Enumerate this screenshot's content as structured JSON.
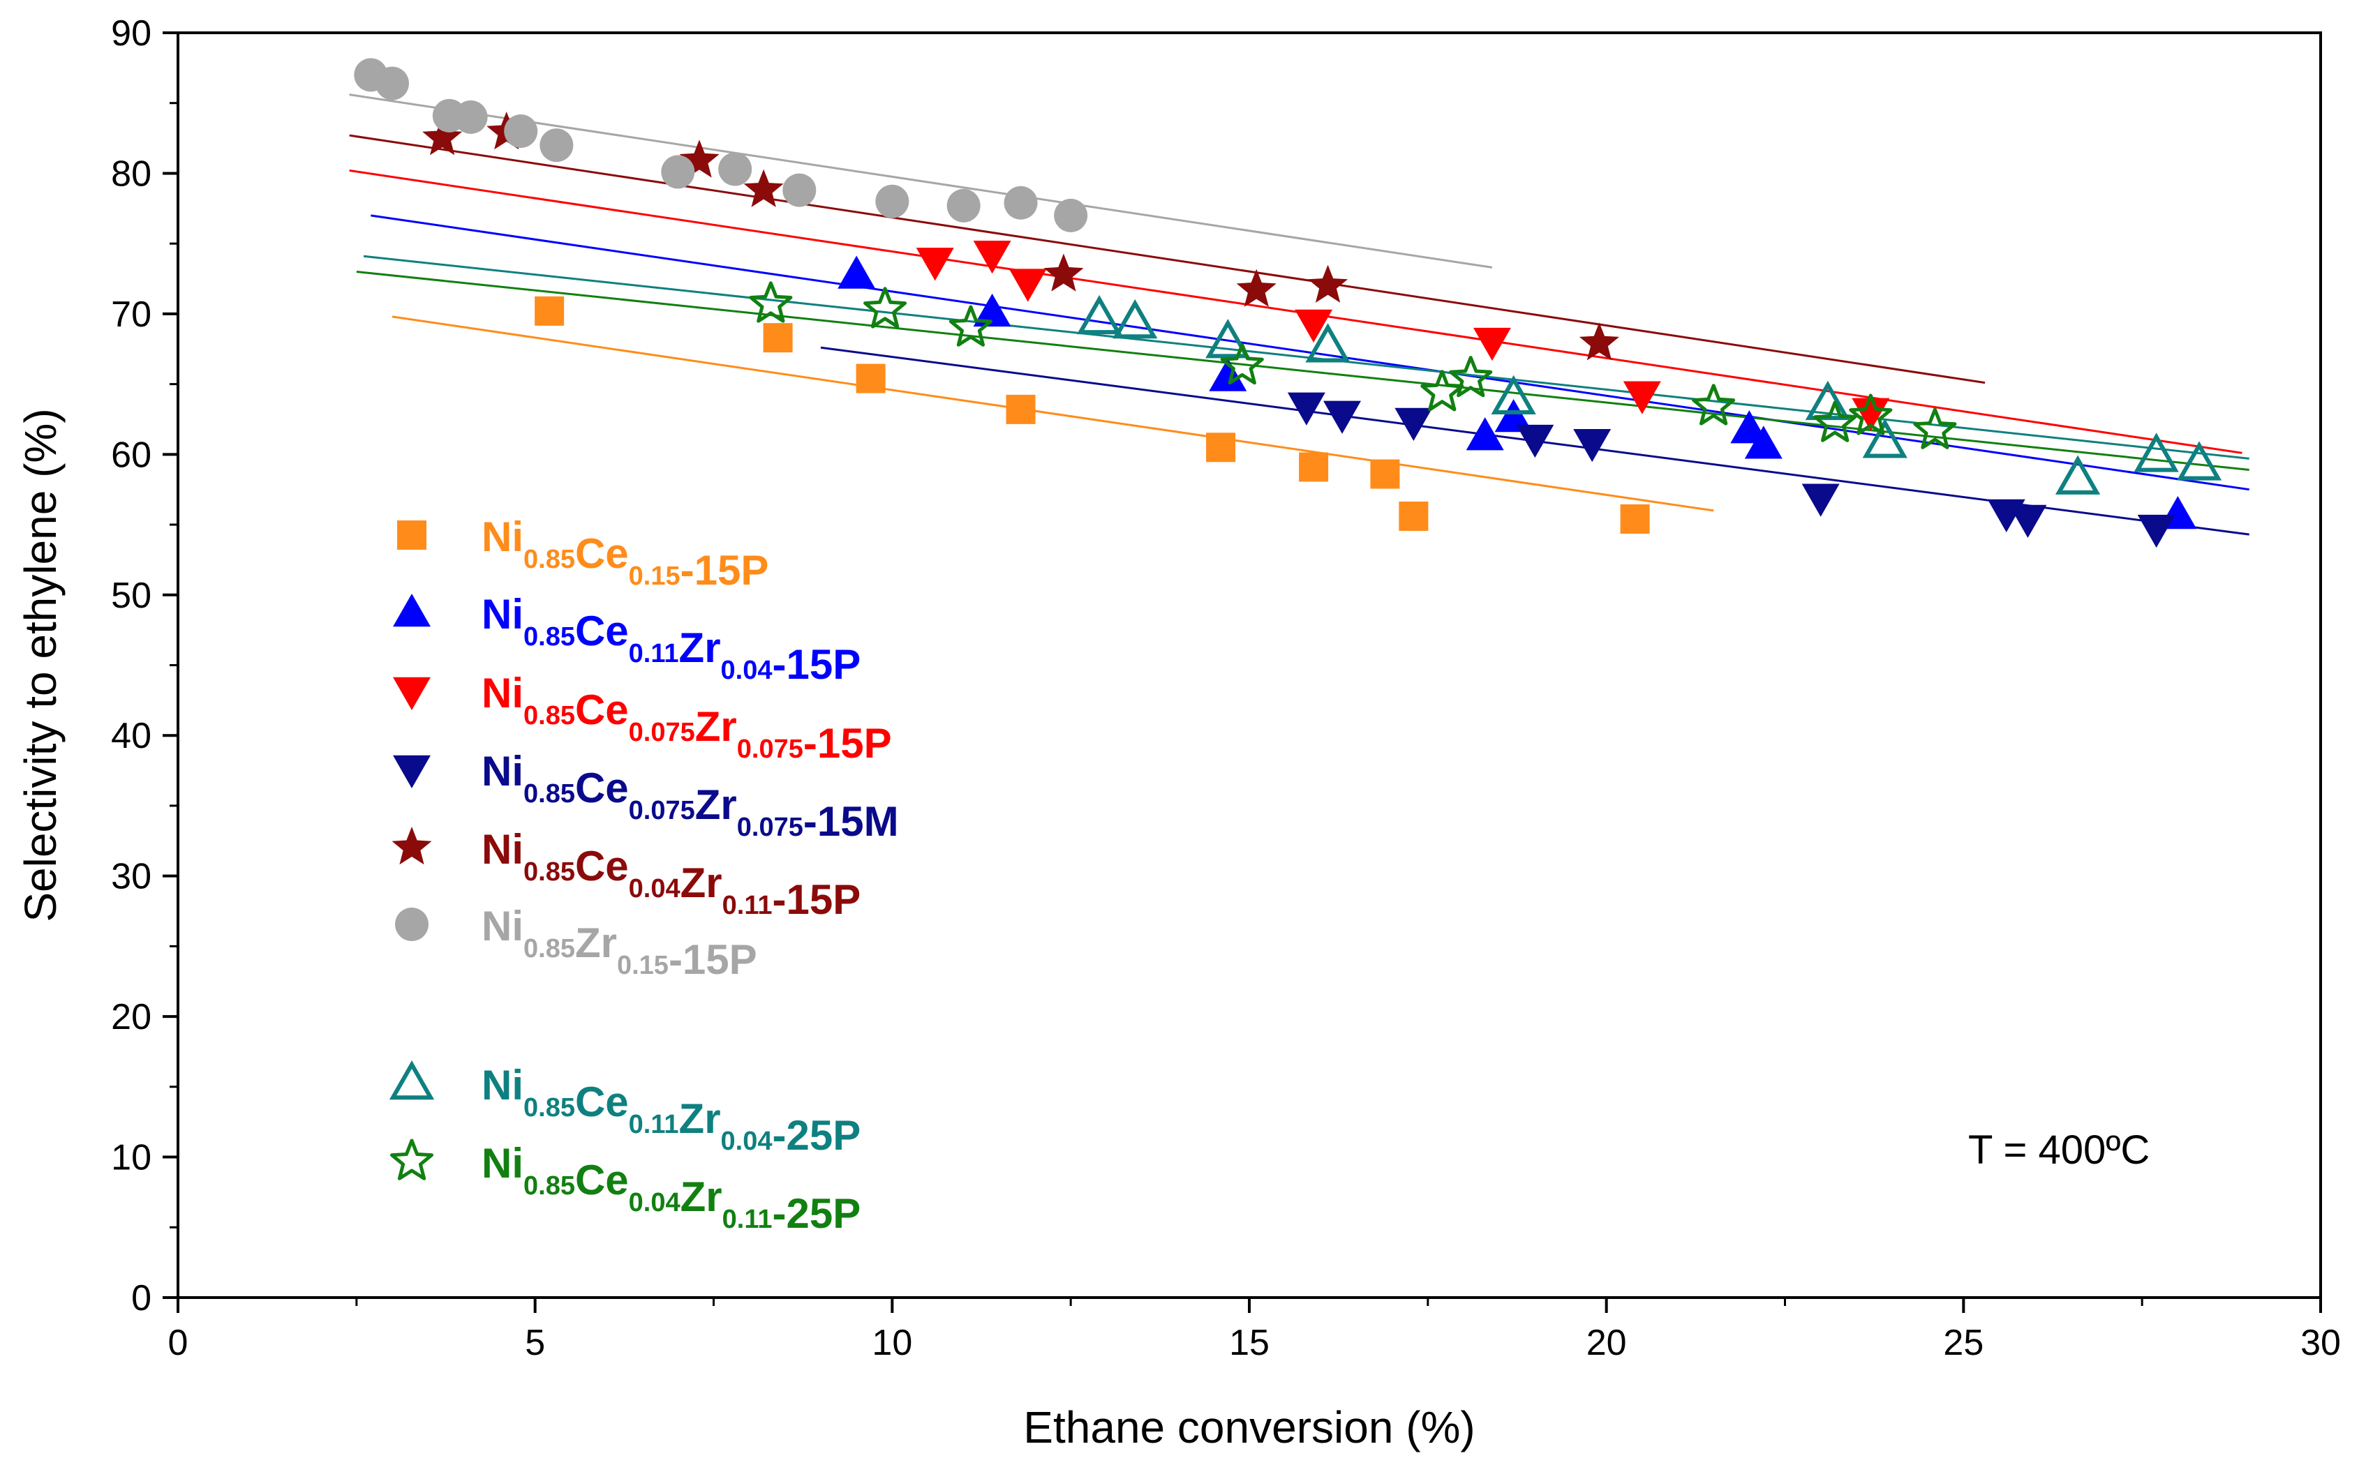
{
  "chart_data": {
    "type": "scatter",
    "title": "",
    "xlabel": "Ethane conversion (%)",
    "ylabel": "Selectivity to ethylene (%)",
    "xlim": [
      0,
      30
    ],
    "ylim": [
      0,
      90
    ],
    "xticks": [
      0,
      5,
      10,
      15,
      20,
      25,
      30
    ],
    "yticks": [
      0,
      10,
      20,
      30,
      40,
      50,
      60,
      70,
      80,
      90
    ],
    "xtick_labels": [
      "0",
      "5",
      "10",
      "15",
      "20",
      "25",
      "30"
    ],
    "ytick_labels": [
      "0",
      "10",
      "20",
      "30",
      "40",
      "50",
      "60",
      "70",
      "80",
      "90"
    ],
    "grid": false,
    "legend_position": "left",
    "annotation": "T = 400ºC",
    "series": [
      {
        "name": "Ni0.85Ce0.15-15P",
        "label_parts": [
          {
            "t": "Ni",
            "sub": false
          },
          {
            "t": "0.85",
            "sub": true
          },
          {
            "t": "Ce",
            "sub": false
          },
          {
            "t": "0.15",
            "sub": true
          },
          {
            "t": "-15P",
            "sub": false
          }
        ],
        "color": "#FF8C1A",
        "marker": "square",
        "filled": true,
        "x": [
          5.2,
          8.4,
          9.7,
          11.8,
          14.6,
          15.9,
          16.9,
          17.3,
          20.4
        ],
        "y": [
          70.2,
          68.3,
          65.4,
          63.2,
          60.5,
          59.1,
          58.6,
          55.6,
          55.4
        ],
        "fit": {
          "x": [
            3.0,
            21.5
          ],
          "y": [
            69.8,
            56.0
          ]
        }
      },
      {
        "name": "Ni0.85Ce0.11Zr0.04-15P",
        "label_parts": [
          {
            "t": "Ni",
            "sub": false
          },
          {
            "t": "0.85",
            "sub": true
          },
          {
            "t": "Ce",
            "sub": false
          },
          {
            "t": "0.11",
            "sub": true
          },
          {
            "t": "Zr",
            "sub": false
          },
          {
            "t": "0.04",
            "sub": true
          },
          {
            "t": "-15P",
            "sub": false
          }
        ],
        "color": "#0000FF",
        "marker": "triangle-up",
        "filled": true,
        "x": [
          9.5,
          11.4,
          14.7,
          18.3,
          18.7,
          22.0,
          22.2,
          28.0
        ],
        "y": [
          72.8,
          70.1,
          65.5,
          61.3,
          62.6,
          61.8,
          60.7,
          55.7
        ],
        "fit": {
          "x": [
            2.7,
            29.0
          ],
          "y": [
            77.0,
            57.5
          ]
        }
      },
      {
        "name": "Ni0.85Ce0.075Zr0.075-15P",
        "label_parts": [
          {
            "t": "Ni",
            "sub": false
          },
          {
            "t": "0.85",
            "sub": true
          },
          {
            "t": "Ce",
            "sub": false
          },
          {
            "t": "0.075",
            "sub": true
          },
          {
            "t": "Zr",
            "sub": false
          },
          {
            "t": "0.075",
            "sub": true
          },
          {
            "t": "-15P",
            "sub": false
          }
        ],
        "color": "#FF0000",
        "marker": "triangle-down",
        "filled": true,
        "x": [
          10.6,
          11.4,
          11.9,
          15.9,
          18.4,
          20.5,
          23.7
        ],
        "y": [
          73.7,
          74.2,
          72.2,
          69.3,
          68.0,
          64.2,
          63.0
        ],
        "fit": {
          "x": [
            2.4,
            28.9
          ],
          "y": [
            80.2,
            60.1
          ]
        }
      },
      {
        "name": "Ni0.85Ce0.075Zr0.075-15M",
        "label_parts": [
          {
            "t": "Ni",
            "sub": false
          },
          {
            "t": "0.85",
            "sub": true
          },
          {
            "t": "Ce",
            "sub": false
          },
          {
            "t": "0.075",
            "sub": true
          },
          {
            "t": "Zr",
            "sub": false
          },
          {
            "t": "0.075",
            "sub": true
          },
          {
            "t": "-15M",
            "sub": false
          }
        ],
        "color": "#0A0A8C",
        "marker": "triangle-down",
        "filled": true,
        "x": [
          15.8,
          16.3,
          17.3,
          19.0,
          19.8,
          23.0,
          25.6,
          25.9,
          27.7
        ],
        "y": [
          63.4,
          62.8,
          62.3,
          61.1,
          60.8,
          56.9,
          55.8,
          55.4,
          54.7
        ],
        "fit": {
          "x": [
            9.0,
            29.0
          ],
          "y": [
            67.6,
            54.3
          ]
        }
      },
      {
        "name": "Ni0.85Ce0.04Zr0.11-15P",
        "label_parts": [
          {
            "t": "Ni",
            "sub": false
          },
          {
            "t": "0.85",
            "sub": true
          },
          {
            "t": "Ce",
            "sub": false
          },
          {
            "t": "0.04",
            "sub": true
          },
          {
            "t": "Zr",
            "sub": false
          },
          {
            "t": "0.11",
            "sub": true
          },
          {
            "t": "-15P",
            "sub": false
          }
        ],
        "color": "#8B0A0A",
        "marker": "star",
        "filled": true,
        "x": [
          3.7,
          4.6,
          7.3,
          8.2,
          12.4,
          15.1,
          16.1,
          19.9
        ],
        "y": [
          82.5,
          82.9,
          80.9,
          78.8,
          72.8,
          71.7,
          72.0,
          67.9
        ],
        "fit": {
          "x": [
            2.4,
            25.3
          ],
          "y": [
            82.7,
            65.1
          ]
        }
      },
      {
        "name": "Ni0.85Zr0.15-15P",
        "label_parts": [
          {
            "t": "Ni",
            "sub": false
          },
          {
            "t": "0.85",
            "sub": true
          },
          {
            "t": "Zr",
            "sub": false
          },
          {
            "t": "0.15",
            "sub": true
          },
          {
            "t": "-15P",
            "sub": false
          }
        ],
        "color": "#A6A6A6",
        "marker": "circle",
        "filled": true,
        "x": [
          2.7,
          3.0,
          3.8,
          4.1,
          4.8,
          5.3,
          7.0,
          7.8,
          8.7,
          10.0,
          11.0,
          11.8,
          12.5
        ],
        "y": [
          87.0,
          86.4,
          84.1,
          84.0,
          83.0,
          82.0,
          80.1,
          80.3,
          78.8,
          78.0,
          77.7,
          77.9,
          77.0
        ],
        "fit": {
          "x": [
            2.4,
            18.4
          ],
          "y": [
            85.6,
            73.3
          ]
        }
      },
      {
        "name": "Ni0.85Ce0.11Zr0.04-25P",
        "label_parts": [
          {
            "t": "Ni",
            "sub": false
          },
          {
            "t": "0.85",
            "sub": true
          },
          {
            "t": "Ce",
            "sub": false
          },
          {
            "t": "0.11",
            "sub": true
          },
          {
            "t": "Zr",
            "sub": false
          },
          {
            "t": "0.04",
            "sub": true
          },
          {
            "t": "-25P",
            "sub": false
          }
        ],
        "color": "#0F8080",
        "marker": "triangle-up",
        "filled": false,
        "x": [
          12.9,
          13.4,
          14.7,
          16.1,
          18.7,
          23.1,
          23.9,
          26.6,
          27.7,
          28.3
        ],
        "y": [
          69.7,
          69.4,
          68.0,
          67.7,
          64.0,
          63.6,
          60.9,
          58.3,
          59.9,
          59.3
        ],
        "fit": {
          "x": [
            2.6,
            29.0
          ],
          "y": [
            74.1,
            59.7
          ]
        }
      },
      {
        "name": "Ni0.85Ce0.04Zr0.11-25P",
        "label_parts": [
          {
            "t": "Ni",
            "sub": false
          },
          {
            "t": "0.85",
            "sub": true
          },
          {
            "t": "Ce",
            "sub": false
          },
          {
            "t": "0.04",
            "sub": true
          },
          {
            "t": "Zr",
            "sub": false
          },
          {
            "t": "0.11",
            "sub": true
          },
          {
            "t": "-25P",
            "sub": false
          }
        ],
        "color": "#118011",
        "marker": "star",
        "filled": false,
        "x": [
          8.3,
          9.9,
          11.1,
          14.9,
          17.7,
          18.1,
          21.5,
          23.2,
          23.7,
          24.6
        ],
        "y": [
          70.7,
          70.3,
          69.0,
          66.3,
          64.4,
          65.4,
          63.4,
          62.2,
          62.7,
          61.7
        ],
        "fit": {
          "x": [
            2.5,
            29.0
          ],
          "y": [
            73.0,
            58.9
          ]
        }
      }
    ]
  }
}
